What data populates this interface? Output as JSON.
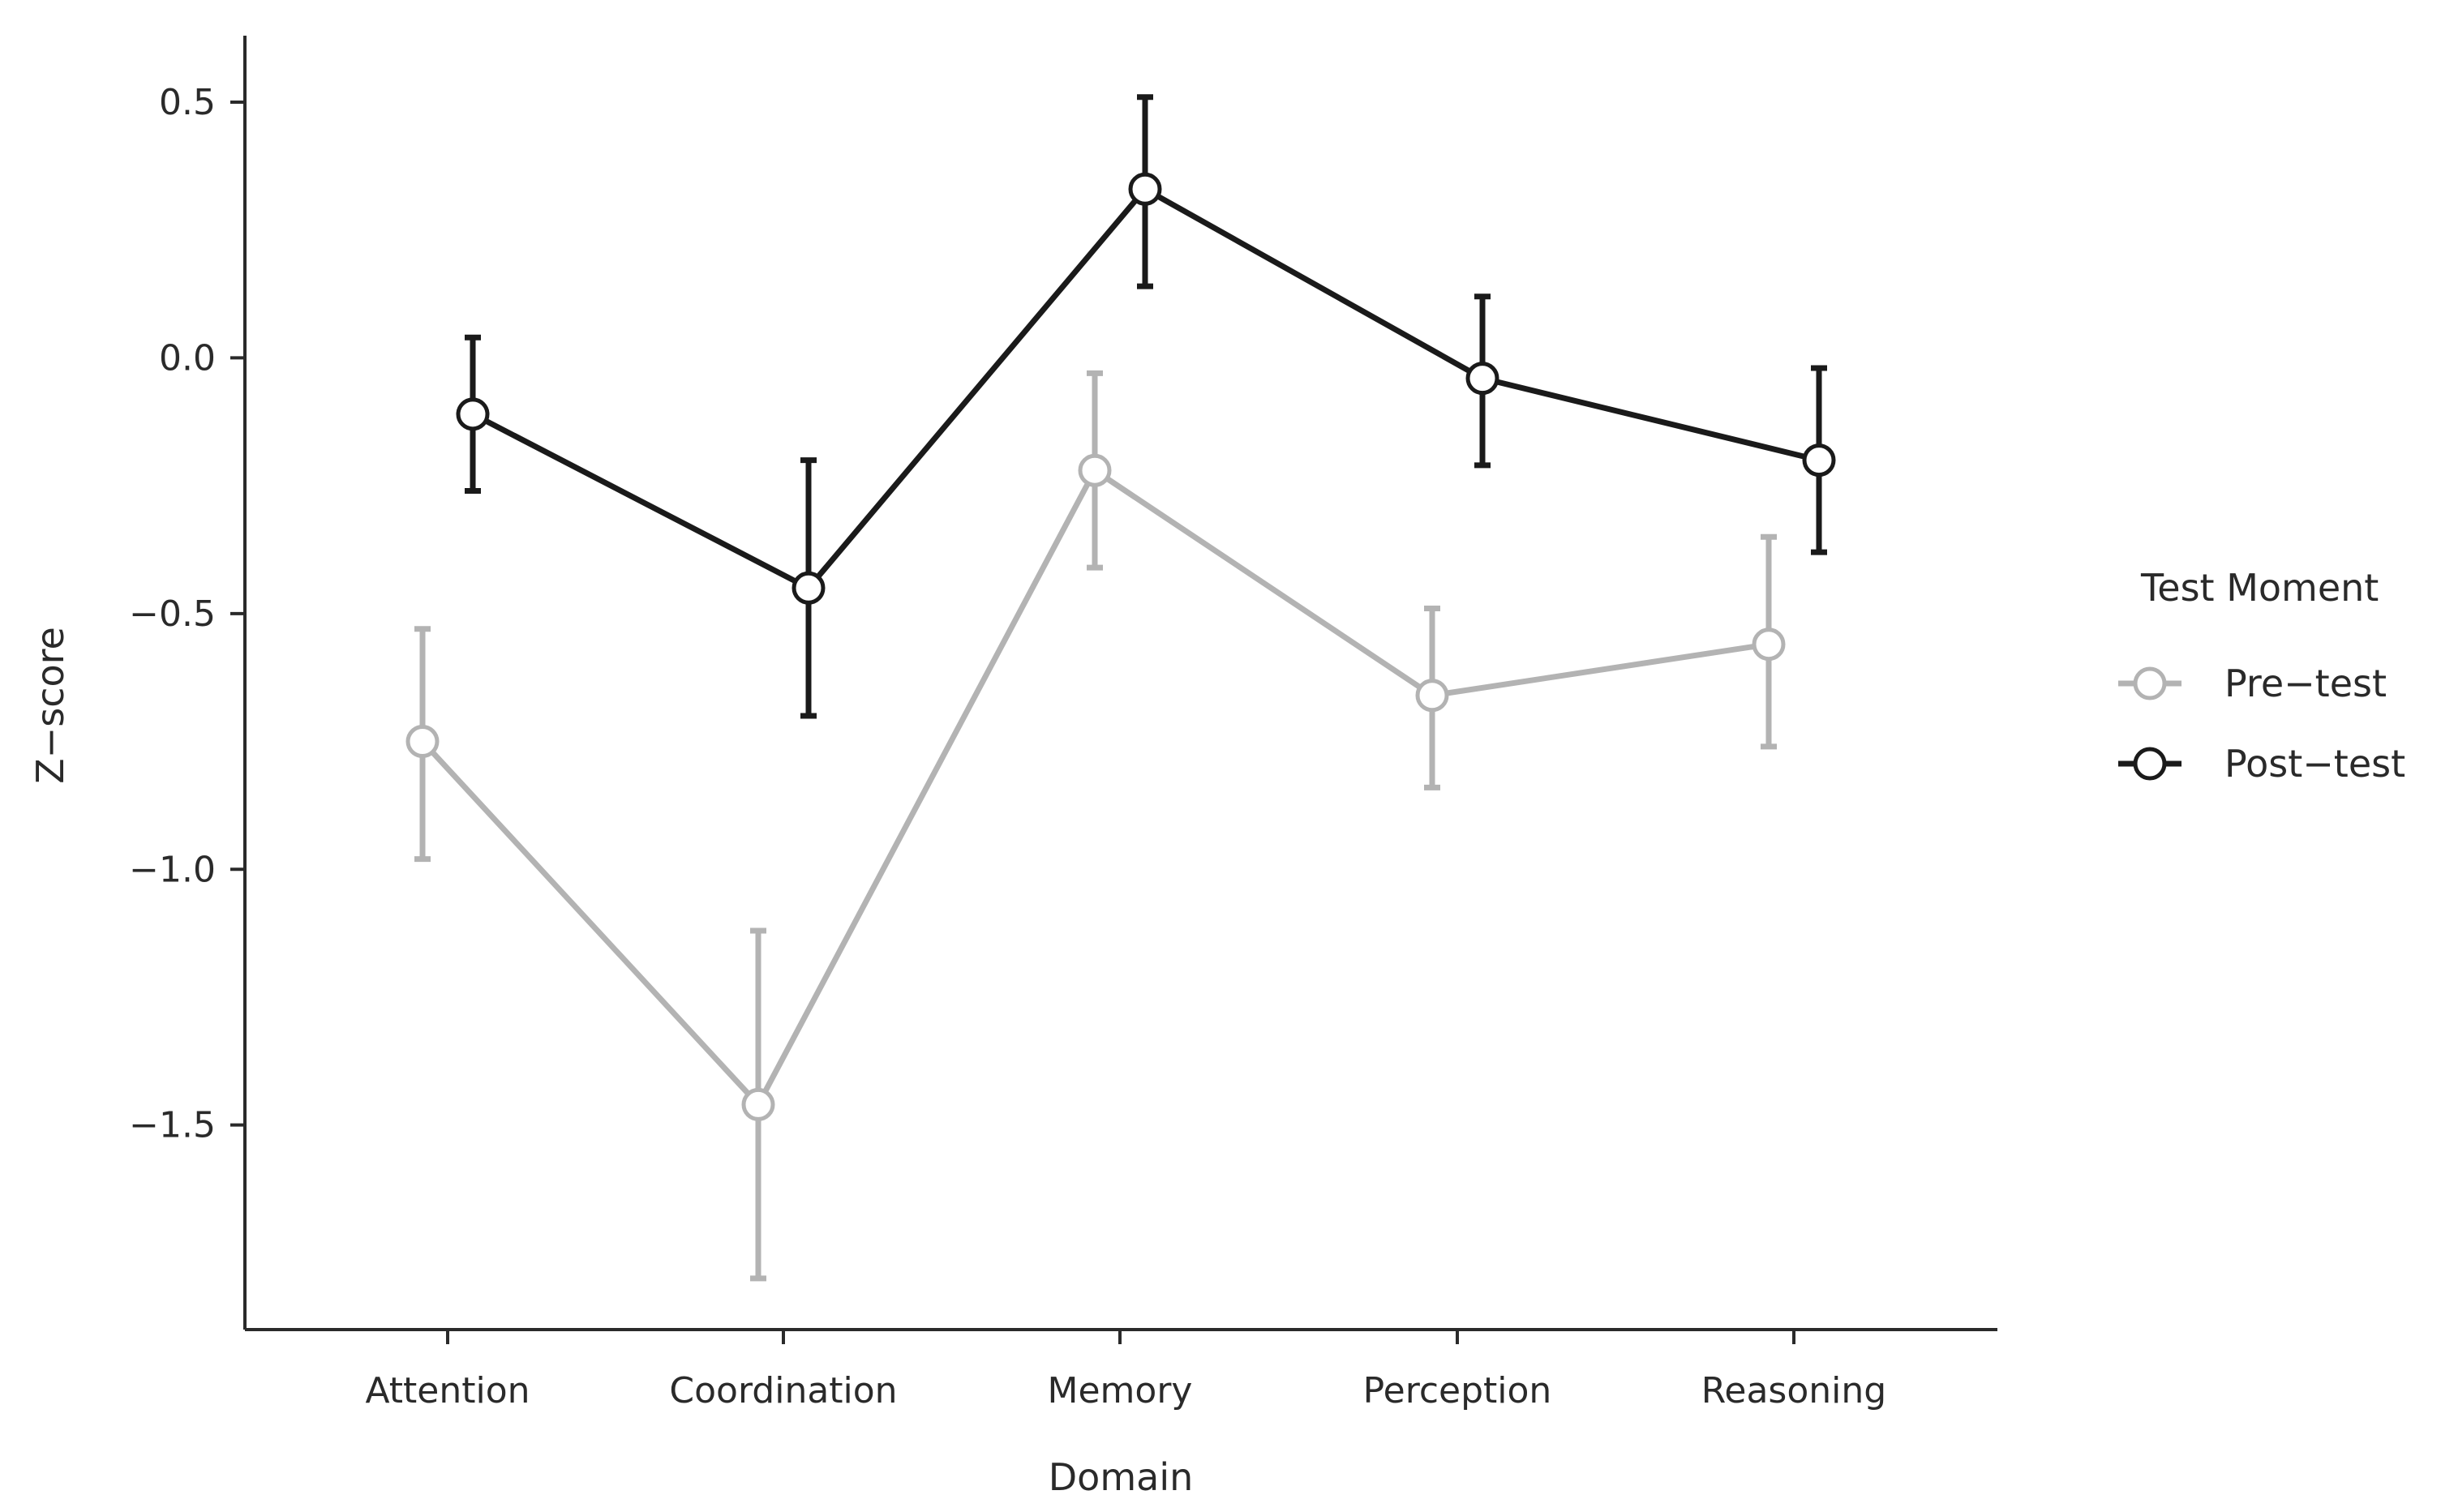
{
  "chart_data": {
    "type": "line",
    "title": "",
    "xlabel": "Domain",
    "ylabel": "Z−score",
    "categories": [
      "Attention",
      "Coordination",
      "Memory",
      "Perception",
      "Reasoning"
    ],
    "yticks": [
      0.5,
      0.0,
      -0.5,
      -1.0,
      -1.5
    ],
    "ytick_labels": [
      "0.5",
      "0.0",
      "−0.5",
      "−1.0",
      "−1.5"
    ],
    "ylim": [
      -1.9,
      0.63
    ],
    "grid": false,
    "legend": {
      "title": "Test Moment",
      "position": "right"
    },
    "series": [
      {
        "name": "Pre−test",
        "color": "#b3b3b3",
        "values": [
          -0.75,
          -1.46,
          -0.22,
          -0.66,
          -0.56
        ],
        "err_low": [
          -0.98,
          -1.8,
          -0.41,
          -0.84,
          -0.76
        ],
        "err_high": [
          -0.53,
          -1.12,
          -0.03,
          -0.49,
          -0.35
        ]
      },
      {
        "name": "Post−test",
        "color": "#1a1a1a",
        "values": [
          -0.11,
          -0.45,
          0.33,
          -0.04,
          -0.2
        ],
        "err_low": [
          -0.26,
          -0.7,
          0.14,
          -0.21,
          -0.38
        ],
        "err_high": [
          0.04,
          -0.2,
          0.51,
          0.12,
          -0.02
        ]
      }
    ]
  }
}
